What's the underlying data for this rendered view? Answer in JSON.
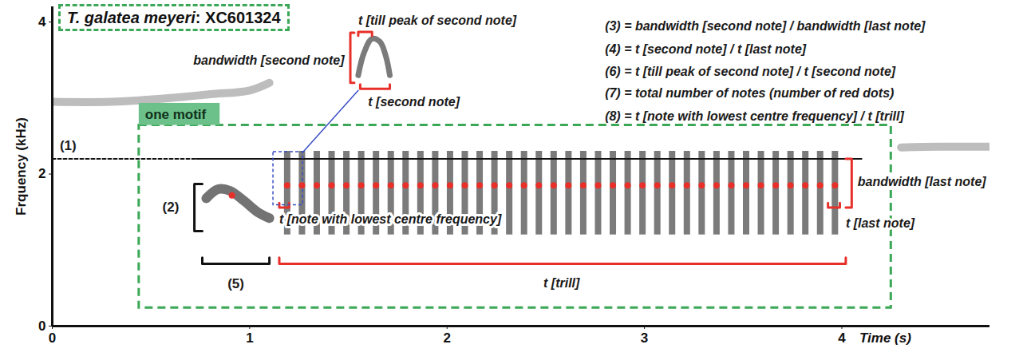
{
  "chart_data": {
    "type": "spectrogram",
    "title": "T. galatea meyeri: XC601324",
    "x_label": "Time (s)",
    "y_label": "Frquency (kHz)",
    "xlim": [
      0,
      4.75
    ],
    "xticks": [
      0,
      1,
      2,
      3,
      4
    ],
    "ylim": [
      0,
      4.2
    ],
    "yticks": [
      0,
      2,
      4
    ],
    "color": "#e8302a",
    "marker": "dot",
    "notes": {
      "x": [
        0.91,
        1.19,
        1.265,
        1.34,
        1.415,
        1.49,
        1.565,
        1.64,
        1.715,
        1.79,
        1.865,
        1.94,
        2.015,
        2.09,
        2.165,
        2.24,
        2.315,
        2.39,
        2.465,
        2.54,
        2.615,
        2.69,
        2.765,
        2.84,
        2.915,
        2.99,
        3.065,
        3.14,
        3.215,
        3.29,
        3.365,
        3.44,
        3.515,
        3.59,
        3.665,
        3.74,
        3.815,
        3.89,
        3.965
      ],
      "y": [
        1.72,
        1.85,
        1.85,
        1.85,
        1.85,
        1.85,
        1.85,
        1.85,
        1.85,
        1.85,
        1.85,
        1.85,
        1.85,
        1.85,
        1.85,
        1.85,
        1.85,
        1.85,
        1.85,
        1.85,
        1.85,
        1.85,
        1.85,
        1.85,
        1.85,
        1.85,
        1.85,
        1.85,
        1.85,
        1.85,
        1.85,
        1.85,
        1.85,
        1.85,
        1.85,
        1.85,
        1.85,
        1.85,
        1.85
      ]
    },
    "first_note": {
      "x": [
        0.78,
        0.84,
        0.9,
        0.97,
        1.04,
        1.1
      ],
      "y": [
        1.68,
        1.8,
        1.78,
        1.65,
        1.5,
        1.42
      ]
    },
    "trill": {
      "low": 1.2,
      "high": 2.3
    },
    "noise": [
      {
        "x": [
          0,
          0.3,
          0.6,
          0.8,
          1.0,
          1.1
        ],
        "y": [
          2.95,
          2.95,
          3.0,
          3.05,
          3.1,
          3.2
        ]
      },
      {
        "x": [
          4.3,
          4.5,
          4.75
        ],
        "y": [
          2.35,
          2.36,
          2.36
        ]
      }
    ],
    "max_frequency": 2.2,
    "annotations": {
      "max_frequency": "(1)",
      "first_note_bandwidth": "(2)",
      "first_note_duration": "(5)",
      "motif": "one motif",
      "bandwidth_second": "bandwidth [second note]",
      "till_peak": "t [till peak of second note]",
      "t_second": "t [second note]",
      "t_lowest": "t [note with lowest centre frequency]",
      "t_trill": "t [trill]",
      "bandwidth_last": "bandwidth [last note]",
      "t_last": "t [last note]"
    },
    "formulas": [
      "(3) = bandwidth [second note] / bandwidth [last note]",
      "(4) = t [second note] / t [last note]",
      "(6) = t [till peak of second note] / t [second note]",
      "(7) = total number of notes (number of red dots)",
      "(8) = t [note with lowest centre frequency] / t [trill]"
    ]
  }
}
